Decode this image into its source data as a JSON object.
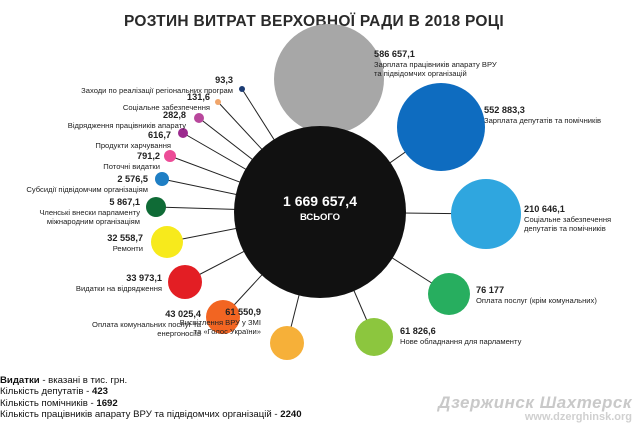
{
  "chart_data": {
    "type": "bubble",
    "title": "РОЗТИН ВИТРАТ ВЕРХОВНОЇ РАДИ В 2018 РОЦІ",
    "total": {
      "value": "1 669 657,4",
      "label": "ВСЬОГО",
      "color": "#111111"
    },
    "items": [
      {
        "value": "586 657,1",
        "amount": 586657.1,
        "label": [
          "Зарплата працівників апарату ВРУ",
          "та підвідомчих організацій"
        ],
        "color": "#a7a7a7"
      },
      {
        "value": "552 883,3",
        "amount": 552883.3,
        "label": [
          "Зарплата депутатів та помічників"
        ],
        "color": "#0e6cc0"
      },
      {
        "value": "210 646,1",
        "amount": 210646.1,
        "label": [
          "Соціальне забезпечення",
          "депутатів та помічників"
        ],
        "color": "#2fa6df"
      },
      {
        "value": "76 177",
        "amount": 76177,
        "label": [
          "Оплата послуг (крім комунальних)"
        ],
        "color": "#27ae5f"
      },
      {
        "value": "61 826,6",
        "amount": 61826.6,
        "label": [
          "Нове обладнання для парламенту"
        ],
        "color": "#8cc63e"
      },
      {
        "value": "61 550,9",
        "amount": 61550.9,
        "label": [
          "Висвітлення ВРУ у ЗМІ",
          "та «Голос України»"
        ],
        "color": "#f6b039"
      },
      {
        "value": "43 025,4",
        "amount": 43025.4,
        "label": [
          "Оплата комунальних послуг та",
          "енергоносіїв"
        ],
        "color": "#f26522"
      },
      {
        "value": "33 973,1",
        "amount": 33973.1,
        "label": [
          "Видатки на відрядження"
        ],
        "color": "#e31e24"
      },
      {
        "value": "32 558,7",
        "amount": 32558.7,
        "label": [
          "Ремонти"
        ],
        "color": "#f7ea1c"
      },
      {
        "value": "5 867,1",
        "amount": 5867.1,
        "label": [
          "Членські внески парламенту",
          "міжнародним організаціям"
        ],
        "color": "#0f6b36"
      },
      {
        "value": "2 576,5",
        "amount": 2576.5,
        "label": [
          "Субсидії підвідомчим організаціям"
        ],
        "color": "#1f7fc4"
      },
      {
        "value": "791,2",
        "amount": 791.2,
        "label": [
          "Поточні видатки"
        ],
        "color": "#ec4c97"
      },
      {
        "value": "616,7",
        "amount": 616.7,
        "label": [
          "Продукти харчування"
        ],
        "color": "#9b2a8e"
      },
      {
        "value": "282,8",
        "amount": 282.8,
        "label": [
          "Відрядження працівників апарату"
        ],
        "color": "#b8479c"
      },
      {
        "value": "131,6",
        "amount": 131.6,
        "label": [
          "Соціальне забезпечення"
        ],
        "color": "#f0a56a"
      },
      {
        "value": "93,3",
        "amount": 93.3,
        "label": [
          "Заходи по реалізації регіональних програм"
        ],
        "color": "#1b3b73"
      }
    ]
  },
  "notes": {
    "line1_label": "Видатки",
    "line1_text": " - вказані в тис. грн.",
    "line2_label": "Кількість депутатів - ",
    "line2_value": "423",
    "line3_label": "Кількість помічників - ",
    "line3_value": "1692",
    "line4_label": "Кількість працівників апарату ВРУ та підвідомчих організацій - ",
    "line4_value": "2240"
  },
  "watermark": {
    "line1": "Дзержинск Шахтерск",
    "line2": "www.dzerghinsk.org"
  }
}
